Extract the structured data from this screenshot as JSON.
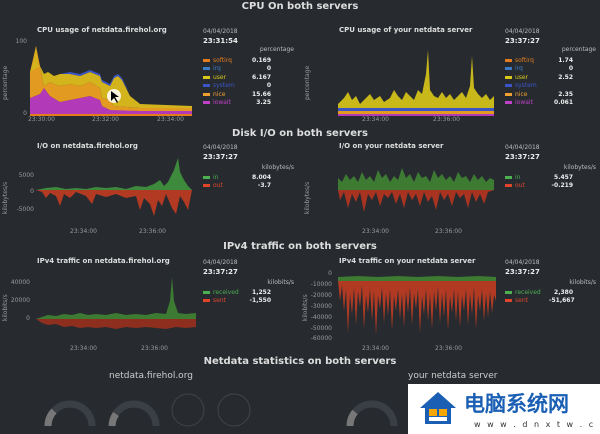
{
  "sections": {
    "cpu": "CPU On both servers",
    "disk": "Disk I/O on both servers",
    "ipv4": "IPv4 traffic on both servers",
    "stats": "Netdata statistics on both servers"
  },
  "charts": {
    "cpu_left": {
      "title": "CPU usage of netdata.firehol.org",
      "ylabel": "percentage",
      "date": "04/04/2018",
      "time": "23:31:54",
      "units": "percentage",
      "legend": [
        {
          "name": "softirq",
          "value": "0.169",
          "color": "#e37c1c"
        },
        {
          "name": "irq",
          "value": "0",
          "color": "#3b7cc8"
        },
        {
          "name": "user",
          "value": "6.167",
          "color": "#d8c81c"
        },
        {
          "name": "system",
          "value": "0",
          "color": "#3b55c8"
        },
        {
          "name": "nice",
          "value": "15.66",
          "color": "#f0a030"
        },
        {
          "name": "iowait",
          "value": "3.25",
          "color": "#c040c8"
        }
      ],
      "xticks": [
        "23:30:00",
        "23:32:00",
        "23:34:00"
      ],
      "yticks": [
        "100",
        "80",
        "60",
        "40",
        "20",
        "0"
      ]
    },
    "cpu_right": {
      "title": "CPU usage of your netdata server",
      "ylabel": "percentage",
      "date": "04/04/2018",
      "time": "23:37:27",
      "units": "percentage",
      "legend": [
        {
          "name": "softirq",
          "value": "1.74",
          "color": "#e37c1c"
        },
        {
          "name": "irq",
          "value": "0",
          "color": "#3b7cc8"
        },
        {
          "name": "user",
          "value": "2.52",
          "color": "#d8c81c"
        },
        {
          "name": "system",
          "value": "",
          "color": "#3b55c8"
        },
        {
          "name": "nice",
          "value": "2.35",
          "color": "#f0a030"
        },
        {
          "name": "iowait",
          "value": "0.061",
          "color": "#c040c8"
        }
      ],
      "xticks": [
        "23:34:00",
        "23:36:00"
      ],
      "yticks": [
        "100",
        "80",
        "60",
        "40",
        "20",
        "0"
      ]
    },
    "disk_left": {
      "title": "I/O on netdata.firehol.org",
      "ylabel": "kilobytes/s",
      "date": "04/04/2018",
      "time": "23:37:27",
      "units": "kilobytes/s",
      "legend": [
        {
          "name": "in",
          "value": "8.004",
          "color": "#4caf50"
        },
        {
          "name": "out",
          "value": "-3.7",
          "color": "#e0452b"
        }
      ],
      "xticks": [
        "23:34:00",
        "23:36:00"
      ],
      "yticks": [
        "5000",
        "0",
        "-5000"
      ]
    },
    "disk_right": {
      "title": "I/O on your netdata server",
      "ylabel": "kilobytes/s",
      "date": "04/04/2018",
      "time": "23:37:27",
      "units": "kilobytes/s",
      "legend": [
        {
          "name": "in",
          "value": "5.457",
          "color": "#4caf50"
        },
        {
          "name": "out",
          "value": "-0.219",
          "color": "#e0452b"
        }
      ],
      "xticks": [
        "23:34:00",
        "23:36:00"
      ],
      "yticks": [
        "500",
        "0",
        "-500"
      ]
    },
    "ipv4_left": {
      "title": "IPv4 traffic on netdata.firehol.org",
      "ylabel": "kilobits/s",
      "date": "04/04/2018",
      "time": "23:37:27",
      "units": "kilobits/s",
      "legend": [
        {
          "name": "received",
          "value": "1,252",
          "color": "#4caf50"
        },
        {
          "name": "sent",
          "value": "-1,550",
          "color": "#e0452b"
        }
      ],
      "xticks": [
        "23:34:00",
        "23:36:00"
      ],
      "yticks": [
        "40000",
        "20000",
        "0"
      ]
    },
    "ipv4_right": {
      "title": "IPv4 traffic on your netdata server",
      "ylabel": "kilobits/s",
      "date": "04/04/2018",
      "time": "23:37:27",
      "units": "kilobits/s",
      "legend": [
        {
          "name": "received",
          "value": "2,380",
          "color": "#4caf50"
        },
        {
          "name": "sent",
          "value": "-51,667",
          "color": "#e0452b"
        }
      ],
      "xticks": [
        "23:34:00",
        "23:36:00"
      ],
      "yticks": [
        "0",
        "-10000",
        "-20000",
        "-30000",
        "-40000",
        "-50000",
        "-60000"
      ]
    }
  },
  "stats": {
    "left_title": "netdata.firehol.org",
    "right_title": "your netdata server"
  },
  "watermark": {
    "text": "电脑系统网",
    "url": "w w w . d n x t w . c o m"
  }
}
